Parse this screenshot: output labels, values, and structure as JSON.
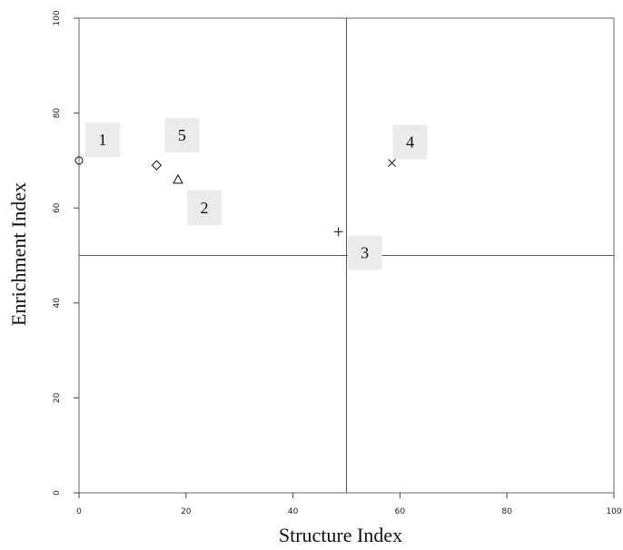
{
  "chart_data": {
    "type": "scatter",
    "title": "",
    "xlabel": "Structure Index",
    "ylabel": "Enrichment Index",
    "xlim": [
      0,
      100
    ],
    "ylim": [
      0,
      100
    ],
    "xticks": [
      "0",
      "20",
      "40",
      "60",
      "80",
      "100"
    ],
    "yticks": [
      "0",
      "20",
      "40",
      "60",
      "80",
      "100"
    ],
    "grid": false,
    "reference_lines": {
      "x": 50,
      "y": 50
    },
    "label_box_color": "#ebebeb",
    "points": [
      {
        "label": "1",
        "x": 0,
        "y": 70,
        "marker": "circle"
      },
      {
        "label": "2",
        "x": 18.5,
        "y": 66,
        "marker": "triangle"
      },
      {
        "label": "3",
        "x": 48.5,
        "y": 55,
        "marker": "plus"
      },
      {
        "label": "4",
        "x": 58.5,
        "y": 69.5,
        "marker": "cross"
      },
      {
        "label": "5",
        "x": 14.5,
        "y": 69,
        "marker": "diamond"
      }
    ]
  }
}
